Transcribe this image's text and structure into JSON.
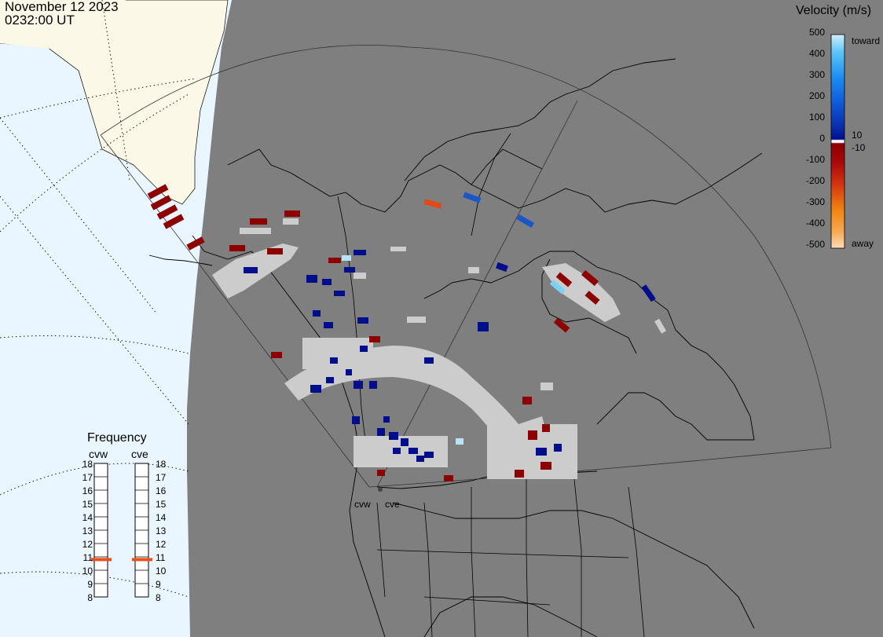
{
  "header": {
    "date": "November 12 2023",
    "time": "0232:00 UT"
  },
  "legend": {
    "title": "Velocity (m/s)",
    "ticks": [
      "500",
      "400",
      "300",
      "200",
      "100",
      "0",
      "-100",
      "-200",
      "-300",
      "-400",
      "-500"
    ],
    "small_ticks": [
      "10",
      "-10"
    ],
    "toward_label": "toward",
    "away_label": "away"
  },
  "frequency": {
    "title": "Frequency",
    "radars": [
      "cvw",
      "cve"
    ],
    "mhz_labels": [
      "18",
      "17",
      "16",
      "15",
      "14",
      "13",
      "12",
      "11",
      "10",
      "9",
      "8"
    ],
    "selected_mhz": 10.8,
    "indicator_color": "#e8501c"
  },
  "radar_sites": [
    "cvw",
    "cve"
  ],
  "colors": {
    "land": "#7f7f7f",
    "ocean_day": "#eaf6ff",
    "land_day": "#fbf8e8",
    "ground_scatter": "#cccccc",
    "toward_dark": "#000e8c",
    "away_dark": "#8c0000"
  }
}
